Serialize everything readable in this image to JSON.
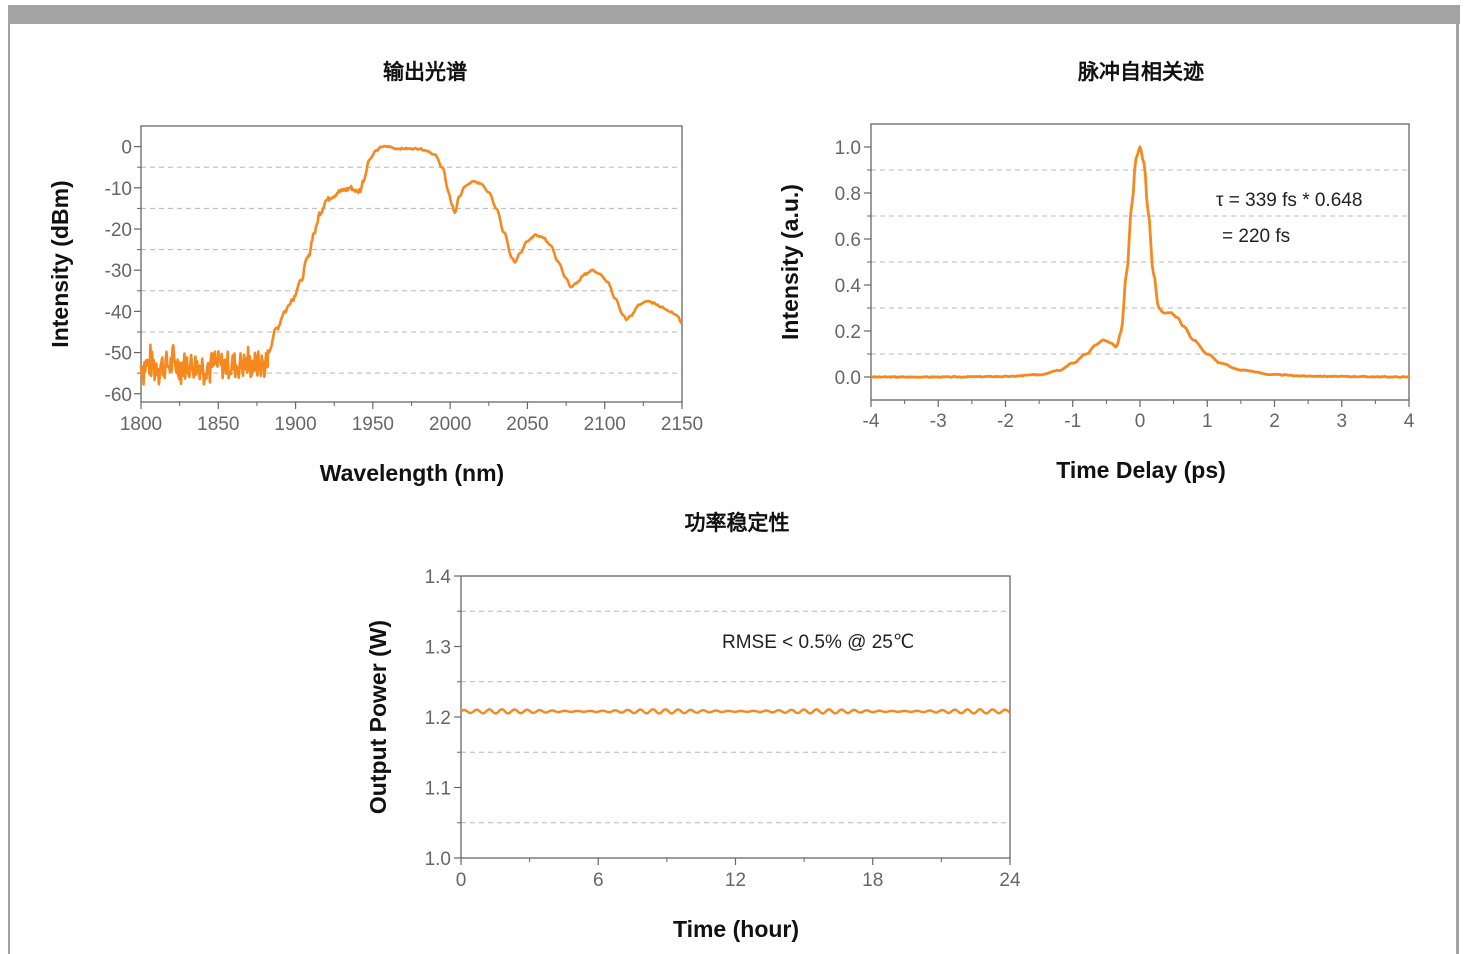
{
  "chart_data": [
    {
      "type": "line",
      "title": "输出光谱",
      "xlabel": "Wavelength (nm)",
      "ylabel": "Intensity (dBm)",
      "xlim": [
        1800,
        2150
      ],
      "ylim": [
        -62,
        5
      ],
      "xticks": [
        1800,
        1850,
        1900,
        1950,
        2000,
        2050,
        2100,
        2150
      ],
      "yticks": [
        0,
        -10,
        -20,
        -30,
        -40,
        -50,
        -60
      ],
      "grid": "horizontal dashed at -5, -15, -25, -35, -45, -55",
      "color": "#f5891f",
      "series": [
        {
          "noise_region": {
            "x_range": [
              1800,
              1882
            ],
            "y_mean": -53,
            "y_amplitude": 3.5
          },
          "x": [
            1882,
            1888,
            1893,
            1898,
            1903,
            1908,
            1912,
            1916,
            1920,
            1924,
            1928,
            1932,
            1936,
            1938,
            1940,
            1942,
            1944,
            1948,
            1952,
            1956,
            1960,
            1965,
            1970,
            1975,
            1980,
            1985,
            1990,
            1995,
            1999,
            2001,
            2003,
            2006,
            2010,
            2015,
            2020,
            2025,
            2030,
            2035,
            2040,
            2042,
            2045,
            2050,
            2055,
            2060,
            2065,
            2070,
            2075,
            2078,
            2082,
            2087,
            2092,
            2097,
            2102,
            2107,
            2112,
            2114,
            2117,
            2122,
            2127,
            2132,
            2137,
            2142,
            2147,
            2150
          ],
          "y": [
            -50,
            -44,
            -40,
            -37,
            -33,
            -27,
            -21,
            -16,
            -13,
            -12,
            -11,
            -10.5,
            -10,
            -10.5,
            -11,
            -10.5,
            -8,
            -3,
            -1,
            0,
            0,
            -0.5,
            -0.5,
            -0.5,
            -0.5,
            -1,
            -2,
            -5,
            -11,
            -14,
            -16,
            -12,
            -9.5,
            -8.5,
            -9,
            -11,
            -15,
            -21,
            -27,
            -28,
            -26,
            -23,
            -21.5,
            -22,
            -24,
            -28,
            -32,
            -34,
            -33,
            -31,
            -30,
            -31,
            -33,
            -37,
            -41,
            -42,
            -41,
            -38.5,
            -37.5,
            -38,
            -39,
            -40,
            -41,
            -43
          ]
        }
      ]
    },
    {
      "type": "line",
      "title": "脉冲自相关迹",
      "xlabel": "Time Delay (ps)",
      "ylabel": "Intensity (a.u.)",
      "xlim": [
        -4,
        4
      ],
      "ylim": [
        -0.1,
        1.1
      ],
      "xticks": [
        -4,
        -3,
        -2,
        -1,
        0,
        1,
        2,
        3,
        4
      ],
      "yticks": [
        0.0,
        0.2,
        0.4,
        0.6,
        0.8,
        1.0
      ],
      "grid": "horizontal dashed at 0.1, 0.3, 0.5, 0.7, 0.9",
      "color": "#f5891f",
      "annotations": [
        "τ  = 339 fs * 0.648",
        "= 220 fs"
      ],
      "series": [
        {
          "x": [
            -4,
            -3,
            -2,
            -1.5,
            -1.2,
            -1.0,
            -0.8,
            -0.65,
            -0.55,
            -0.45,
            -0.35,
            -0.28,
            -0.2,
            -0.12,
            -0.06,
            0,
            0.06,
            0.12,
            0.2,
            0.28,
            0.35,
            0.45,
            0.55,
            0.65,
            0.8,
            1.0,
            1.2,
            1.5,
            2.0,
            2.5,
            3,
            4
          ],
          "y": [
            0,
            0,
            0.002,
            0.01,
            0.03,
            0.06,
            0.1,
            0.14,
            0.16,
            0.15,
            0.13,
            0.2,
            0.45,
            0.75,
            0.95,
            1.0,
            0.93,
            0.72,
            0.45,
            0.3,
            0.28,
            0.28,
            0.26,
            0.22,
            0.16,
            0.1,
            0.06,
            0.03,
            0.01,
            0.004,
            0.002,
            0
          ]
        }
      ]
    },
    {
      "type": "line",
      "title": "功率稳定性",
      "xlabel": "Time (hour)",
      "ylabel": "Output Power (W)",
      "xlim": [
        0,
        24
      ],
      "ylim": [
        1.0,
        1.4
      ],
      "xticks": [
        0,
        6,
        12,
        18,
        24
      ],
      "yticks": [
        1.0,
        1.1,
        1.2,
        1.3,
        1.4
      ],
      "grid": "horizontal dashed at 1.05, 1.15, 1.25, 1.35",
      "color": "#f5891f",
      "annotations": [
        "RMSE < 0.5% @ 25℃"
      ],
      "series": [
        {
          "x_range": [
            0,
            24
          ],
          "y_mean": 1.208,
          "y_amplitude": 0.003
        }
      ]
    }
  ]
}
